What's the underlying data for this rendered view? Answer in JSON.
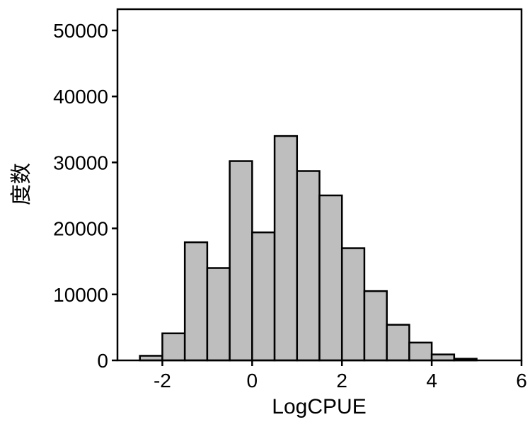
{
  "chart_data": {
    "type": "bar",
    "subtype": "histogram",
    "title": "",
    "xlabel": "LogCPUE",
    "ylabel": "度数",
    "xlim": [
      -3,
      6
    ],
    "ylim": [
      0,
      50000
    ],
    "xticks": [
      -2,
      0,
      2,
      4,
      6
    ],
    "yticks": [
      0,
      10000,
      20000,
      30000,
      40000,
      50000
    ],
    "bin_width": 0.5,
    "bins": [
      {
        "x0": -2.5,
        "x1": -2.0,
        "value": 700
      },
      {
        "x0": -2.0,
        "x1": -1.5,
        "value": 4100
      },
      {
        "x0": -1.5,
        "x1": -1.0,
        "value": 17900
      },
      {
        "x0": -1.0,
        "x1": -0.5,
        "value": 14000
      },
      {
        "x0": -0.5,
        "x1": 0.0,
        "value": 30200
      },
      {
        "x0": 0.0,
        "x1": 0.5,
        "value": 19400
      },
      {
        "x0": 0.5,
        "x1": 1.0,
        "value": 34000
      },
      {
        "x0": 1.0,
        "x1": 1.5,
        "value": 28700
      },
      {
        "x0": 1.5,
        "x1": 2.0,
        "value": 25000
      },
      {
        "x0": 2.0,
        "x1": 2.5,
        "value": 17000
      },
      {
        "x0": 2.5,
        "x1": 3.0,
        "value": 10500
      },
      {
        "x0": 3.0,
        "x1": 3.5,
        "value": 5400
      },
      {
        "x0": 3.5,
        "x1": 4.0,
        "value": 2700
      },
      {
        "x0": 4.0,
        "x1": 4.5,
        "value": 900
      },
      {
        "x0": 4.5,
        "x1": 5.0,
        "value": 250
      }
    ],
    "grid": false,
    "legend": "none",
    "colors": {
      "bar_fill": "#bebebe",
      "bar_stroke": "#000000",
      "axis": "#000000"
    }
  }
}
